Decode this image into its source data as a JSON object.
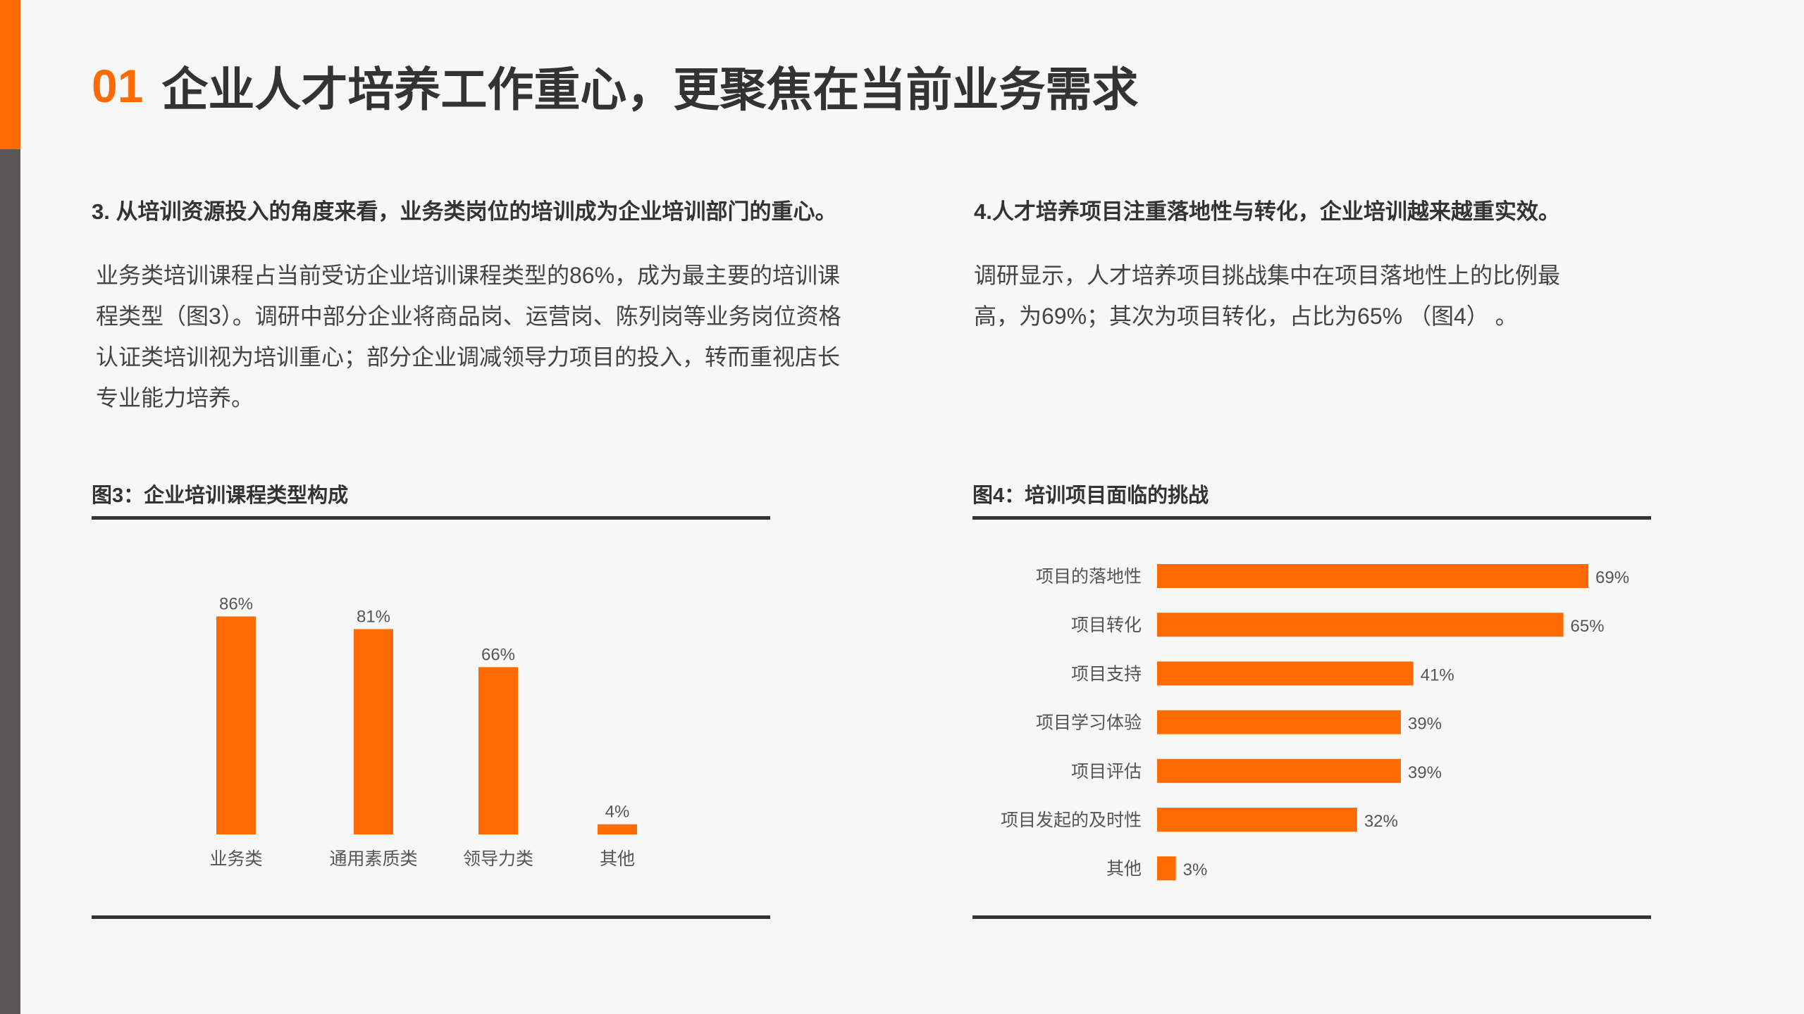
{
  "header": {
    "number": "01",
    "title": "企业人才培养工作重心，更聚焦在当前业务需求"
  },
  "left_section": {
    "heading": "3. 从培训资源投入的角度来看，业务类岗位的培训成为企业培训部门的重心。",
    "paragraph_lines": [
      "业务类培训课程占当前受访企业培训课程类型的86%，成为最主要的培训课",
      "程类型（图3）。调研中部分企业将商品岗、运营岗、陈列岗等业务岗位资格",
      "认证类培训视为培训重心；部分企业调减领导力项目的投入，转而重视店长",
      "专业能力培养。"
    ],
    "figure_title": "图3：企业培训课程类型构成"
  },
  "right_section": {
    "heading": "4.人才培养项目注重落地性与转化，企业培训越来越重实效。",
    "paragraph_lines": [
      "调研显示，人才培养项目挑战集中在项目落地性上的比例最",
      "高，为69%；其次为项目转化，占比为65% （图4） 。"
    ],
    "figure_title": "图4：培训项目面临的挑战"
  },
  "colors": {
    "accent": "#ff6b00",
    "dark_bar": "#595757",
    "text": "#333333"
  },
  "chart_data": [
    {
      "type": "bar",
      "orientation": "vertical",
      "title": "图3：企业培训课程类型构成",
      "categories": [
        "业务类",
        "通用素质类",
        "领导力类",
        "其他"
      ],
      "values": [
        86,
        81,
        66,
        4
      ],
      "value_labels": [
        "86%",
        "81%",
        "66%",
        "4%"
      ],
      "unit": "%",
      "ylim": [
        0,
        100
      ],
      "grid": false,
      "legend": "none",
      "color": "#ff6b00"
    },
    {
      "type": "bar",
      "orientation": "horizontal",
      "title": "图4：培训项目面临的挑战",
      "categories": [
        "项目的落地性",
        "项目转化",
        "项目支持",
        "项目学习体验",
        "项目评估",
        "项目发起的及时性",
        "其他"
      ],
      "values": [
        69,
        65,
        41,
        39,
        39,
        32,
        3
      ],
      "value_labels": [
        "69%",
        "65%",
        "41%",
        "39%",
        "39%",
        "32%",
        "3%"
      ],
      "unit": "%",
      "xlim": [
        0,
        100
      ],
      "grid": false,
      "legend": "none",
      "color": "#ff6b00"
    }
  ]
}
